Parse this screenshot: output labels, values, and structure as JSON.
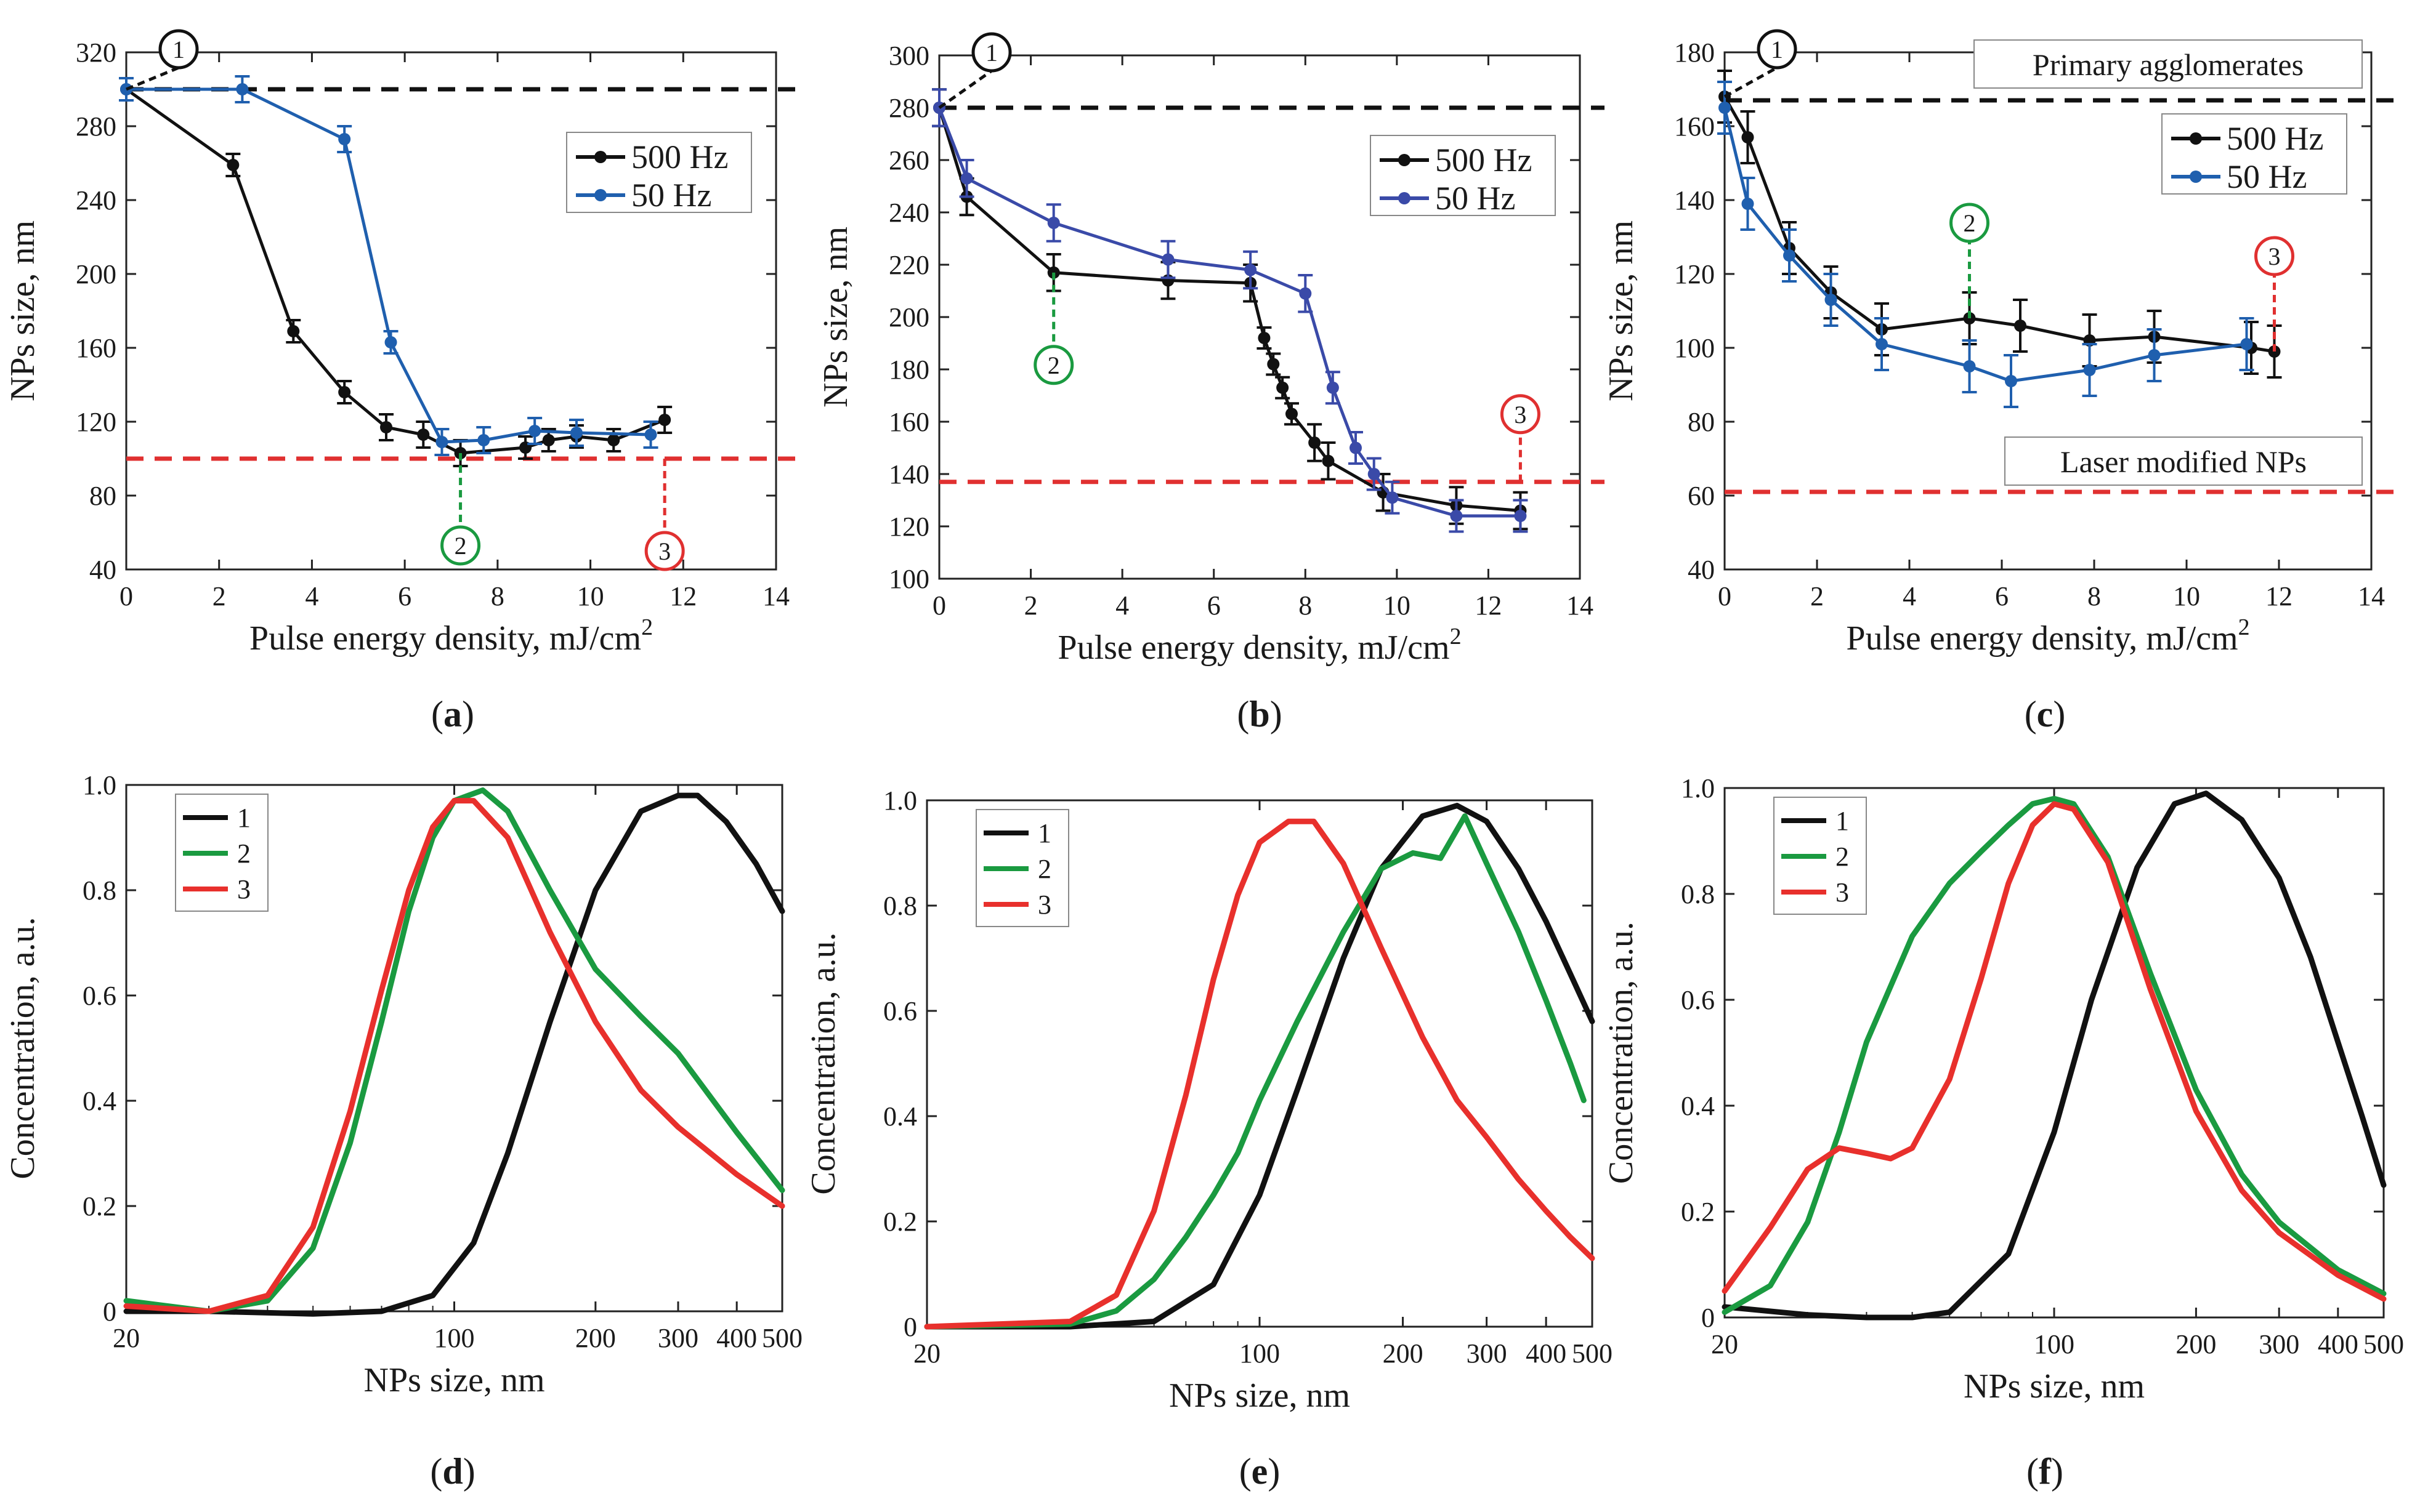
{
  "chart_data": [
    {
      "id": "a",
      "type": "line",
      "panel_label": "a",
      "xlabel": "Pulse energy density, mJ/cm",
      "xlabel_sup": "2",
      "ylabel": "NPs size, nm",
      "xlim": [
        0,
        14
      ],
      "ylim": [
        40,
        320
      ],
      "xticks": [
        0,
        2,
        4,
        6,
        8,
        10,
        12,
        14
      ],
      "yticks": [
        40,
        80,
        120,
        160,
        200,
        240,
        280,
        320
      ],
      "legend": {
        "position": "top-right",
        "entries": [
          "500 Hz",
          "50 Hz"
        ]
      },
      "series": [
        {
          "name": "500 Hz",
          "color": "#111111",
          "x": [
            0,
            2.3,
            3.6,
            4.7,
            5.6,
            6.4,
            7.2,
            8.6,
            9.1,
            9.7,
            10.5,
            11.6
          ],
          "y": [
            300,
            259,
            169,
            136,
            117,
            113,
            103,
            106,
            110,
            112,
            110,
            121
          ],
          "err": [
            6,
            6,
            6,
            6,
            7,
            7,
            7,
            6,
            6,
            6,
            6,
            7
          ]
        },
        {
          "name": "50 Hz",
          "color": "#1f5fae",
          "x": [
            0,
            2.5,
            4.7,
            5.7,
            6.8,
            7.7,
            8.8,
            9.7,
            11.3
          ],
          "y": [
            300,
            300,
            273,
            163,
            109,
            110,
            115,
            114,
            113
          ],
          "err": [
            6,
            7,
            7,
            6,
            7,
            7,
            7,
            7,
            7
          ]
        }
      ],
      "hlines": [
        {
          "y": 300,
          "color": "#111111",
          "style": "dashed"
        },
        {
          "y": 100,
          "color": "#e03030",
          "style": "dashed"
        }
      ],
      "markers": [
        {
          "label": "1",
          "x": 0,
          "y": 300,
          "color": "#111111"
        },
        {
          "label": "2",
          "x": 7.2,
          "y": 103,
          "color": "#1a9a40"
        },
        {
          "label": "3",
          "x": 11.6,
          "y": 100,
          "color": "#e03030"
        }
      ]
    },
    {
      "id": "b",
      "type": "line",
      "panel_label": "b",
      "xlabel": "Pulse energy density, mJ/cm",
      "xlabel_sup": "2",
      "ylabel": "NPs size, nm",
      "xlim": [
        0,
        14
      ],
      "ylim": [
        100,
        300
      ],
      "xticks": [
        0,
        2,
        4,
        6,
        8,
        10,
        12,
        14
      ],
      "yticks": [
        100,
        120,
        140,
        160,
        180,
        200,
        220,
        240,
        260,
        280,
        300
      ],
      "legend": {
        "position": "top-right",
        "entries": [
          "500 Hz",
          "50 Hz"
        ]
      },
      "series": [
        {
          "name": "500 Hz",
          "color": "#111111",
          "x": [
            0,
            0.6,
            2.5,
            5.0,
            6.8,
            7.1,
            7.3,
            7.5,
            7.7,
            8.2,
            8.5,
            9.7,
            11.3,
            12.7
          ],
          "y": [
            280,
            246,
            217,
            214,
            213,
            192,
            182,
            173,
            163,
            152,
            145,
            133,
            128,
            126
          ],
          "err": [
            7,
            7,
            7,
            7,
            7,
            4,
            4,
            4,
            4,
            7,
            7,
            7,
            7,
            7
          ]
        },
        {
          "name": "50 Hz",
          "color": "#3a4aa8",
          "x": [
            0,
            0.6,
            2.5,
            5.0,
            6.8,
            8.0,
            8.6,
            9.1,
            9.5,
            9.9,
            11.3,
            12.7
          ],
          "y": [
            280,
            253,
            236,
            222,
            218,
            209,
            173,
            150,
            140,
            131,
            124,
            124
          ],
          "err": [
            7,
            7,
            7,
            7,
            7,
            7,
            6,
            6,
            6,
            6,
            6,
            6
          ]
        }
      ],
      "hlines": [
        {
          "y": 280,
          "color": "#111111",
          "style": "dashed"
        },
        {
          "y": 137,
          "color": "#e03030",
          "style": "dashed"
        }
      ],
      "markers": [
        {
          "label": "1",
          "x": 0,
          "y": 280,
          "color": "#111111"
        },
        {
          "label": "2",
          "x": 2.5,
          "y": 217,
          "color": "#1a9a40"
        },
        {
          "label": "3",
          "x": 12.7,
          "y": 137,
          "color": "#e03030"
        }
      ]
    },
    {
      "id": "c",
      "type": "line",
      "panel_label": "c",
      "xlabel": "Pulse energy density, mJ/cm",
      "xlabel_sup": "2",
      "ylabel": "NPs size, nm",
      "xlim": [
        0,
        14
      ],
      "ylim": [
        40,
        180
      ],
      "xticks": [
        0,
        2,
        4,
        6,
        8,
        10,
        12,
        14
      ],
      "yticks": [
        40,
        60,
        80,
        100,
        120,
        140,
        160,
        180
      ],
      "legend": {
        "position": "top-right",
        "entries": [
          "500 Hz",
          "50 Hz"
        ]
      },
      "annotations": [
        "Primary agglomerates",
        "Laser modified NPs"
      ],
      "series": [
        {
          "name": "500 Hz",
          "color": "#111111",
          "x": [
            0,
            0.5,
            1.4,
            2.3,
            3.4,
            5.3,
            6.4,
            7.9,
            9.3,
            11.4,
            11.9
          ],
          "y": [
            168,
            157,
            127,
            115,
            105,
            108,
            106,
            102,
            103,
            100,
            99
          ],
          "err": [
            7,
            7,
            7,
            7,
            7,
            7,
            7,
            7,
            7,
            7,
            7
          ]
        },
        {
          "name": "50 Hz",
          "color": "#1f5fae",
          "x": [
            0,
            0.5,
            1.4,
            2.3,
            3.4,
            5.3,
            6.2,
            7.9,
            9.3,
            11.3
          ],
          "y": [
            165,
            139,
            125,
            113,
            101,
            95,
            91,
            94,
            98,
            101
          ],
          "err": [
            7,
            7,
            7,
            7,
            7,
            7,
            7,
            7,
            7,
            7
          ]
        }
      ],
      "hlines": [
        {
          "y": 167,
          "color": "#111111",
          "style": "dashed"
        },
        {
          "y": 61,
          "color": "#e03030",
          "style": "dashed"
        }
      ],
      "markers": [
        {
          "label": "1",
          "x": 0,
          "y": 168,
          "color": "#111111"
        },
        {
          "label": "2",
          "x": 5.3,
          "y": 108,
          "color": "#1a9a40"
        },
        {
          "label": "3",
          "x": 11.9,
          "y": 99,
          "color": "#e03030"
        }
      ]
    },
    {
      "id": "d",
      "type": "line",
      "panel_label": "d",
      "xscale": "log",
      "xlabel": "NPs size, nm",
      "ylabel": "Concentration, a.u.",
      "xlim": [
        20,
        500
      ],
      "ylim": [
        0,
        1.0
      ],
      "xticks": [
        20,
        100,
        200,
        300,
        400,
        500
      ],
      "yticks": [
        0,
        0.2,
        0.4,
        0.6,
        0.8,
        1.0
      ],
      "ytick_labels": [
        "0",
        "0.2",
        "0.4",
        "0.6",
        "0.8",
        "1.0"
      ],
      "legend": {
        "position": "top-left",
        "entries": [
          "1",
          "2",
          "3"
        ]
      },
      "series": [
        {
          "name": "1",
          "color": "#111111",
          "x": [
            20,
            30,
            50,
            70,
            90,
            110,
            130,
            160,
            200,
            250,
            300,
            330,
            380,
            440,
            500
          ],
          "y": [
            0.0,
            0.0,
            -0.005,
            0.0,
            0.03,
            0.13,
            0.3,
            0.55,
            0.8,
            0.95,
            0.98,
            0.98,
            0.93,
            0.85,
            0.76
          ]
        },
        {
          "name": "2",
          "color": "#1a9a40",
          "x": [
            20,
            30,
            40,
            50,
            60,
            70,
            80,
            90,
            100,
            115,
            130,
            160,
            200,
            250,
            300,
            400,
            500
          ],
          "y": [
            0.02,
            0.0,
            0.02,
            0.12,
            0.32,
            0.55,
            0.76,
            0.9,
            0.97,
            0.99,
            0.95,
            0.8,
            0.65,
            0.56,
            0.49,
            0.34,
            0.23
          ]
        },
        {
          "name": "3",
          "color": "#e8302c",
          "x": [
            20,
            30,
            40,
            50,
            60,
            70,
            80,
            90,
            100,
            110,
            130,
            160,
            200,
            250,
            300,
            400,
            500
          ],
          "y": [
            0.01,
            0.0,
            0.03,
            0.16,
            0.38,
            0.61,
            0.8,
            0.92,
            0.97,
            0.97,
            0.9,
            0.72,
            0.55,
            0.42,
            0.35,
            0.26,
            0.2
          ]
        }
      ]
    },
    {
      "id": "e",
      "type": "line",
      "panel_label": "e",
      "xscale": "log",
      "xlabel": "NPs size, nm",
      "ylabel": "Concentration, a.u.",
      "xlim": [
        20,
        500
      ],
      "ylim": [
        0,
        1.0
      ],
      "xticks": [
        20,
        100,
        200,
        300,
        400,
        500
      ],
      "yticks": [
        0,
        0.2,
        0.4,
        0.6,
        0.8,
        1.0
      ],
      "ytick_labels": [
        "0",
        "0.2",
        "0.4",
        "0.6",
        "0.8",
        "1.0"
      ],
      "legend": {
        "position": "top-left",
        "entries": [
          "1",
          "2",
          "3"
        ]
      },
      "series": [
        {
          "name": "1",
          "color": "#111111",
          "x": [
            20,
            40,
            60,
            80,
            100,
            120,
            150,
            180,
            220,
            260,
            300,
            350,
            400,
            450,
            500
          ],
          "y": [
            0.0,
            0.0,
            0.01,
            0.08,
            0.25,
            0.45,
            0.7,
            0.87,
            0.97,
            0.99,
            0.96,
            0.87,
            0.77,
            0.67,
            0.58
          ]
        },
        {
          "name": "2",
          "color": "#1a9a40",
          "x": [
            20,
            40,
            50,
            60,
            70,
            80,
            90,
            100,
            120,
            150,
            180,
            210,
            240,
            270,
            300,
            350,
            400,
            450,
            480
          ],
          "y": [
            0.0,
            0.005,
            0.03,
            0.09,
            0.17,
            0.25,
            0.33,
            0.43,
            0.58,
            0.75,
            0.87,
            0.9,
            0.89,
            0.97,
            0.88,
            0.75,
            0.62,
            0.5,
            0.43
          ]
        },
        {
          "name": "3",
          "color": "#e8302c",
          "x": [
            20,
            40,
            50,
            60,
            70,
            80,
            90,
            100,
            115,
            130,
            150,
            180,
            220,
            260,
            300,
            350,
            400,
            450,
            500
          ],
          "y": [
            0.0,
            0.01,
            0.06,
            0.22,
            0.44,
            0.66,
            0.82,
            0.92,
            0.96,
            0.96,
            0.88,
            0.72,
            0.55,
            0.43,
            0.36,
            0.28,
            0.22,
            0.17,
            0.13
          ]
        }
      ]
    },
    {
      "id": "f",
      "type": "line",
      "panel_label": "f",
      "xscale": "log",
      "xlabel": "NPs size, nm",
      "ylabel": "Concentration, a.u.",
      "xlim": [
        20,
        500
      ],
      "ylim": [
        0,
        1.0
      ],
      "xticks": [
        20,
        100,
        200,
        300,
        400,
        500
      ],
      "yticks": [
        0,
        0.2,
        0.4,
        0.6,
        0.8,
        1.0
      ],
      "ytick_labels": [
        "0",
        "0.2",
        "0.4",
        "0.6",
        "0.8",
        "1.0"
      ],
      "legend": {
        "position": "top-left",
        "entries": [
          "1",
          "2",
          "3"
        ]
      },
      "series": [
        {
          "name": "1",
          "color": "#111111",
          "x": [
            20,
            30,
            40,
            50,
            60,
            80,
            100,
            120,
            150,
            180,
            210,
            250,
            300,
            350,
            400,
            450,
            500
          ],
          "y": [
            0.02,
            0.005,
            0.0,
            0.0,
            0.01,
            0.12,
            0.35,
            0.6,
            0.85,
            0.97,
            0.99,
            0.94,
            0.83,
            0.68,
            0.52,
            0.38,
            0.25
          ]
        },
        {
          "name": "2",
          "color": "#1a9a40",
          "x": [
            20,
            25,
            30,
            35,
            40,
            50,
            60,
            70,
            80,
            90,
            100,
            110,
            130,
            160,
            200,
            250,
            300,
            400,
            500
          ],
          "y": [
            0.01,
            0.06,
            0.18,
            0.35,
            0.52,
            0.72,
            0.82,
            0.88,
            0.93,
            0.97,
            0.98,
            0.97,
            0.87,
            0.65,
            0.43,
            0.27,
            0.18,
            0.09,
            0.045
          ]
        },
        {
          "name": "3",
          "color": "#e8302c",
          "x": [
            20,
            25,
            30,
            35,
            40,
            45,
            50,
            60,
            70,
            80,
            90,
            100,
            110,
            130,
            160,
            200,
            250,
            300,
            400,
            500
          ],
          "y": [
            0.05,
            0.17,
            0.28,
            0.32,
            0.31,
            0.3,
            0.32,
            0.45,
            0.64,
            0.82,
            0.93,
            0.97,
            0.96,
            0.86,
            0.62,
            0.39,
            0.24,
            0.16,
            0.08,
            0.035
          ]
        }
      ]
    }
  ]
}
